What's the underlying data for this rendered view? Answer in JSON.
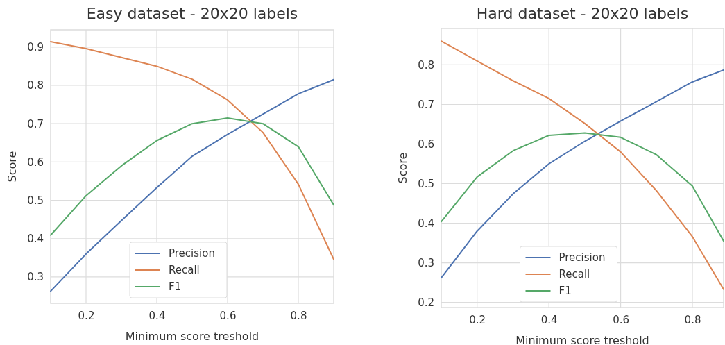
{
  "chart_data": [
    {
      "type": "line",
      "title": "Easy dataset - 20x20 labels",
      "xlabel": "Minimum score treshold",
      "ylabel": "Score",
      "x": [
        0.1,
        0.2,
        0.3,
        0.4,
        0.5,
        0.6,
        0.7,
        0.8,
        0.9
      ],
      "series": [
        {
          "name": "Precision",
          "color": "#4c72b0",
          "values": [
            0.263,
            0.36,
            0.447,
            0.533,
            0.615,
            0.672,
            0.725,
            0.778,
            0.815
          ]
        },
        {
          "name": "Recall",
          "color": "#dd8452",
          "values": [
            0.914,
            0.896,
            0.873,
            0.85,
            0.816,
            0.762,
            0.677,
            0.542,
            0.346
          ]
        },
        {
          "name": "F1",
          "color": "#55a868",
          "values": [
            0.409,
            0.512,
            0.59,
            0.656,
            0.7,
            0.715,
            0.7,
            0.64,
            0.488
          ]
        }
      ],
      "xlim": [
        0.1,
        0.9
      ],
      "ylim": [
        0.231,
        0.945
      ],
      "xticks": [
        0.2,
        0.4,
        0.6,
        0.8
      ],
      "yticks": [
        0.3,
        0.4,
        0.5,
        0.6,
        0.7,
        0.8,
        0.9
      ],
      "grid": true,
      "legend": "bottom"
    },
    {
      "type": "line",
      "title": "Hard dataset - 20x20 labels",
      "xlabel": "Minimum score treshold",
      "ylabel": "Score",
      "x": [
        0.1,
        0.2,
        0.3,
        0.4,
        0.5,
        0.6,
        0.7,
        0.8,
        0.887
      ],
      "series": [
        {
          "name": "Precision",
          "color": "#4c72b0",
          "values": [
            0.262,
            0.38,
            0.474,
            0.55,
            0.607,
            0.658,
            0.707,
            0.757,
            0.787
          ]
        },
        {
          "name": "Recall",
          "color": "#dd8452",
          "values": [
            0.86,
            0.81,
            0.76,
            0.715,
            0.652,
            0.58,
            0.482,
            0.366,
            0.233
          ]
        },
        {
          "name": "F1",
          "color": "#55a868",
          "values": [
            0.404,
            0.517,
            0.583,
            0.622,
            0.628,
            0.617,
            0.573,
            0.494,
            0.355
          ]
        }
      ],
      "xlim": [
        0.1,
        0.887
      ],
      "ylim": [
        0.187,
        0.892
      ],
      "xticks": [
        0.2,
        0.4,
        0.6,
        0.8
      ],
      "yticks": [
        0.2,
        0.3,
        0.4,
        0.5,
        0.6,
        0.7,
        0.8
      ],
      "grid": true,
      "legend": "bottom"
    }
  ]
}
